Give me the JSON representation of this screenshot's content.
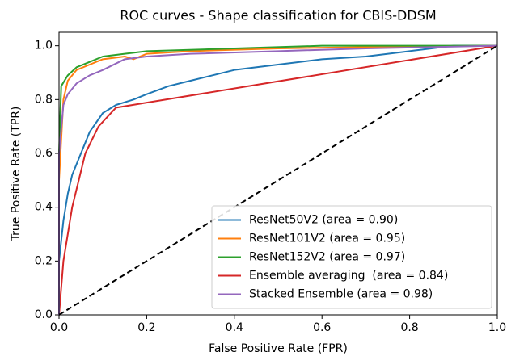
{
  "chart_data": {
    "type": "line",
    "title": "ROC curves - Shape classification for CBIS-DDSM",
    "x_label": "False Positive Rate (FPR)",
    "y_label": "True Positive Rate (TPR)",
    "xlim": [
      0,
      1
    ],
    "ylim": [
      0,
      1.05
    ],
    "xticks": [
      {
        "value": 0,
        "label": "0.0"
      },
      0.2,
      0.4,
      0.6,
      0.8,
      {
        "value": 1,
        "label": "1.0"
      }
    ],
    "yticks": [
      {
        "value": 0,
        "label": "0.0"
      },
      0.2,
      0.4,
      0.6,
      0.8,
      {
        "value": 1,
        "label": "1.0"
      }
    ],
    "legend": "lower right",
    "grid": false,
    "diagonal": {
      "x": [
        0,
        1
      ],
      "values": [
        0,
        1
      ],
      "color": "#000000",
      "style": "dashed"
    },
    "series": [
      {
        "name": "ResNet50V2 (area = 0.90)",
        "color": "#1f77b4",
        "x": [
          0,
          0,
          0.01,
          0.02,
          0.03,
          0.05,
          0.07,
          0.1,
          0.13,
          0.17,
          0.2,
          0.25,
          0.3,
          0.4,
          0.5,
          0.6,
          0.7,
          0.8,
          0.85,
          0.9,
          1
        ],
        "values": [
          0,
          0.2,
          0.35,
          0.45,
          0.52,
          0.6,
          0.68,
          0.75,
          0.78,
          0.8,
          0.82,
          0.85,
          0.87,
          0.91,
          0.93,
          0.95,
          0.96,
          0.98,
          0.99,
          1,
          1
        ]
      },
      {
        "name": "ResNet101V2 (area = 0.95)",
        "color": "#ff7f0e",
        "x": [
          0,
          0,
          0.01,
          0.02,
          0.04,
          0.07,
          0.1,
          0.15,
          0.17,
          0.2,
          0.3,
          0.5,
          0.7,
          1
        ],
        "values": [
          0,
          0.5,
          0.8,
          0.87,
          0.91,
          0.93,
          0.95,
          0.96,
          0.95,
          0.97,
          0.98,
          0.99,
          0.995,
          1
        ]
      },
      {
        "name": "ResNet152V2 (area = 0.97)",
        "color": "#2ca02c",
        "x": [
          0,
          0,
          0.005,
          0.02,
          0.04,
          0.07,
          0.1,
          0.15,
          0.2,
          0.4,
          0.6,
          1
        ],
        "values": [
          0,
          0.6,
          0.85,
          0.89,
          0.92,
          0.94,
          0.96,
          0.97,
          0.98,
          0.99,
          1,
          1
        ]
      },
      {
        "name": "Ensemble averaging  (area = 0.84)",
        "color": "#d62728",
        "x": [
          0,
          0.01,
          0.03,
          0.06,
          0.09,
          0.13,
          1
        ],
        "values": [
          0,
          0.2,
          0.4,
          0.6,
          0.7,
          0.77,
          1
        ]
      },
      {
        "name": "Stacked Ensemble (area = 0.98)",
        "color": "#9467bd",
        "x": [
          0,
          0,
          0.01,
          0.02,
          0.04,
          0.07,
          0.1,
          0.15,
          0.2,
          0.3,
          0.5,
          0.7,
          1
        ],
        "values": [
          0,
          0.6,
          0.78,
          0.82,
          0.86,
          0.89,
          0.91,
          0.95,
          0.96,
          0.97,
          0.98,
          0.99,
          1
        ]
      }
    ]
  }
}
